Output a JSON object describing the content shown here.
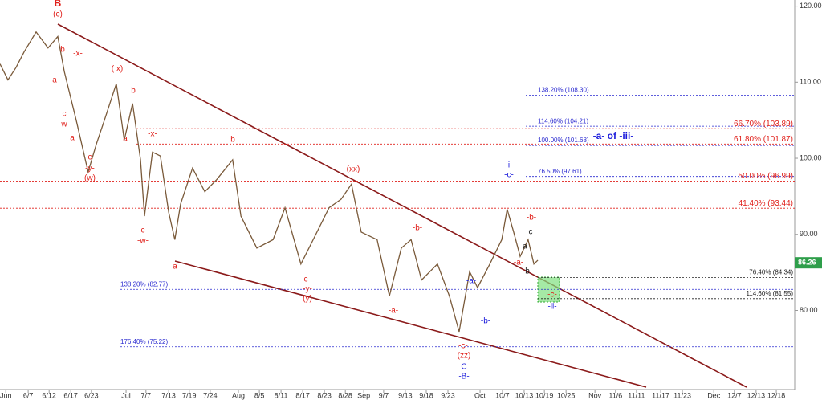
{
  "chart_data": {
    "type": "line",
    "x": [
      0,
      2.2,
      4.4,
      6.7,
      10,
      13.3,
      16,
      17.8,
      21.1,
      24.4,
      26.7,
      28.9,
      32.2,
      34.4,
      36.7,
      38.9,
      40,
      42.2,
      44.4,
      46.7,
      48.4,
      50,
      53.3,
      56.7,
      60,
      64.4,
      66.7,
      71.1,
      75.6,
      78.9,
      83.3,
      86.7,
      91.1,
      94.4,
      97.3,
      100,
      104.4,
      107.8,
      111.1,
      113.8,
      116.7,
      121.1,
      124.4,
      127.1,
      130,
      132.2,
      135.6,
      138.9,
      140.4,
      142.2,
      144,
      146.2,
      147.8,
      148.9
    ],
    "series": [
      {
        "name": "Price",
        "color": "#7a5a3a",
        "values": [
          112.4,
          110.3,
          111.9,
          114,
          116.6,
          114.5,
          116,
          111.4,
          105,
          98.2,
          101.9,
          105,
          109.8,
          102.4,
          107.2,
          99.8,
          92.4,
          100.8,
          100.3,
          92.9,
          89.3,
          94,
          98.7,
          95.6,
          97.2,
          99.8,
          92.4,
          88.2,
          89.3,
          93.5,
          86.1,
          89.3,
          93.5,
          94.6,
          96.6,
          90.3,
          89.3,
          81.9,
          88.2,
          89.3,
          84,
          86.1,
          81.9,
          77.2,
          85.1,
          83,
          86.1,
          89.3,
          93.3,
          90.3,
          87.1,
          89.3,
          86.1,
          86.6
        ]
      }
    ],
    "xlim": [
      0,
      220
    ],
    "ylim": [
      69.6,
      120.8
    ],
    "xticks": [
      {
        "value": 1.6,
        "label": "Jun"
      },
      {
        "value": 7.8,
        "label": "6/7"
      },
      {
        "value": 13.6,
        "label": "6/12"
      },
      {
        "value": 19.6,
        "label": "6/17"
      },
      {
        "value": 25.3,
        "label": "6/23"
      },
      {
        "value": 34.9,
        "label": "Jul"
      },
      {
        "value": 40.4,
        "label": "7/7"
      },
      {
        "value": 46.7,
        "label": "7/13"
      },
      {
        "value": 52.4,
        "label": "7/19"
      },
      {
        "value": 58.2,
        "label": "7/24"
      },
      {
        "value": 66,
        "label": "Aug"
      },
      {
        "value": 71.8,
        "label": "8/5"
      },
      {
        "value": 77.8,
        "label": "8/11"
      },
      {
        "value": 83.8,
        "label": "8/17"
      },
      {
        "value": 89.8,
        "label": "8/23"
      },
      {
        "value": 95.6,
        "label": "8/28"
      },
      {
        "value": 100.7,
        "label": "Sep"
      },
      {
        "value": 106.2,
        "label": "9/7"
      },
      {
        "value": 112.2,
        "label": "9/13"
      },
      {
        "value": 118,
        "label": "9/18"
      },
      {
        "value": 124,
        "label": "9/23"
      },
      {
        "value": 132.9,
        "label": "Oct"
      },
      {
        "value": 139.1,
        "label": "10/7"
      },
      {
        "value": 145.1,
        "label": "10/13"
      },
      {
        "value": 150.7,
        "label": "10/19"
      },
      {
        "value": 156.7,
        "label": "10/25"
      },
      {
        "value": 164.7,
        "label": "Nov"
      },
      {
        "value": 170.4,
        "label": "11/6"
      },
      {
        "value": 176.2,
        "label": "11/11"
      },
      {
        "value": 182.9,
        "label": "11/17"
      },
      {
        "value": 188.9,
        "label": "11/23"
      },
      {
        "value": 197.6,
        "label": "Dec"
      },
      {
        "value": 203.3,
        "label": "12/7"
      },
      {
        "value": 209.3,
        "label": "12/13"
      },
      {
        "value": 214.9,
        "label": "12/18"
      }
    ],
    "yticks": [
      {
        "value": 120,
        "label": "120.00"
      },
      {
        "value": 110,
        "label": "110.00"
      },
      {
        "value": 100,
        "label": "100.00"
      },
      {
        "value": 90,
        "label": "90.00"
      },
      {
        "value": 80,
        "label": "80.00"
      }
    ],
    "last_price": {
      "value": 86.26,
      "label": "86.26"
    },
    "levels": [
      {
        "value": 108.3,
        "label": "138.20% (108.30)",
        "color": "#2a2ad0"
      },
      {
        "value": 104.21,
        "label": "114.60% (104.21)",
        "color": "#2a2ad0"
      },
      {
        "value": 101.68,
        "label": "100.00% (101.68)",
        "color": "#2a2ad0"
      },
      {
        "value": 97.61,
        "label": "76.50% (97.61)",
        "color": "#2a2ad0"
      },
      {
        "value": 103.89,
        "label": "66.70% (103.89)",
        "color": "#e0201b"
      },
      {
        "value": 101.87,
        "label": "61.80% (101.87)",
        "color": "#e0201b"
      },
      {
        "value": 96.99,
        "label": "50.00% (96.99)",
        "color": "#e0201b"
      },
      {
        "value": 93.44,
        "label": "41.40% (93.44)",
        "color": "#e0201b"
      },
      {
        "value": 84.34,
        "label": "76.40% (84.34)",
        "color": "#222222"
      },
      {
        "value": 81.55,
        "label": "114.60% (81.55)",
        "color": "#222222"
      },
      {
        "value": 82.77,
        "label": "138.20% (82.77)",
        "color": "#2a2ad0"
      },
      {
        "value": 75.22,
        "label": "176.40% (75.22)",
        "color": "#2a2ad0"
      }
    ],
    "annotations": [
      "B",
      "(c)",
      "b",
      "-x-",
      "a",
      "c",
      "-w-",
      "a",
      "( x)",
      "b",
      "a",
      "-x-",
      "b",
      "c",
      "-y-",
      "(w)",
      "c",
      "-w-",
      "a",
      "(xx)",
      "c",
      "-y-",
      "(y)",
      "-b-",
      "-a-",
      "-c-",
      "(zz)",
      "C",
      "-B-",
      "-a-",
      "-b-",
      "-i-",
      "-c-",
      "-b-",
      "c",
      "a",
      "-a-",
      "b",
      "-c-",
      "-ii-",
      "-a- of -iii-"
    ]
  }
}
